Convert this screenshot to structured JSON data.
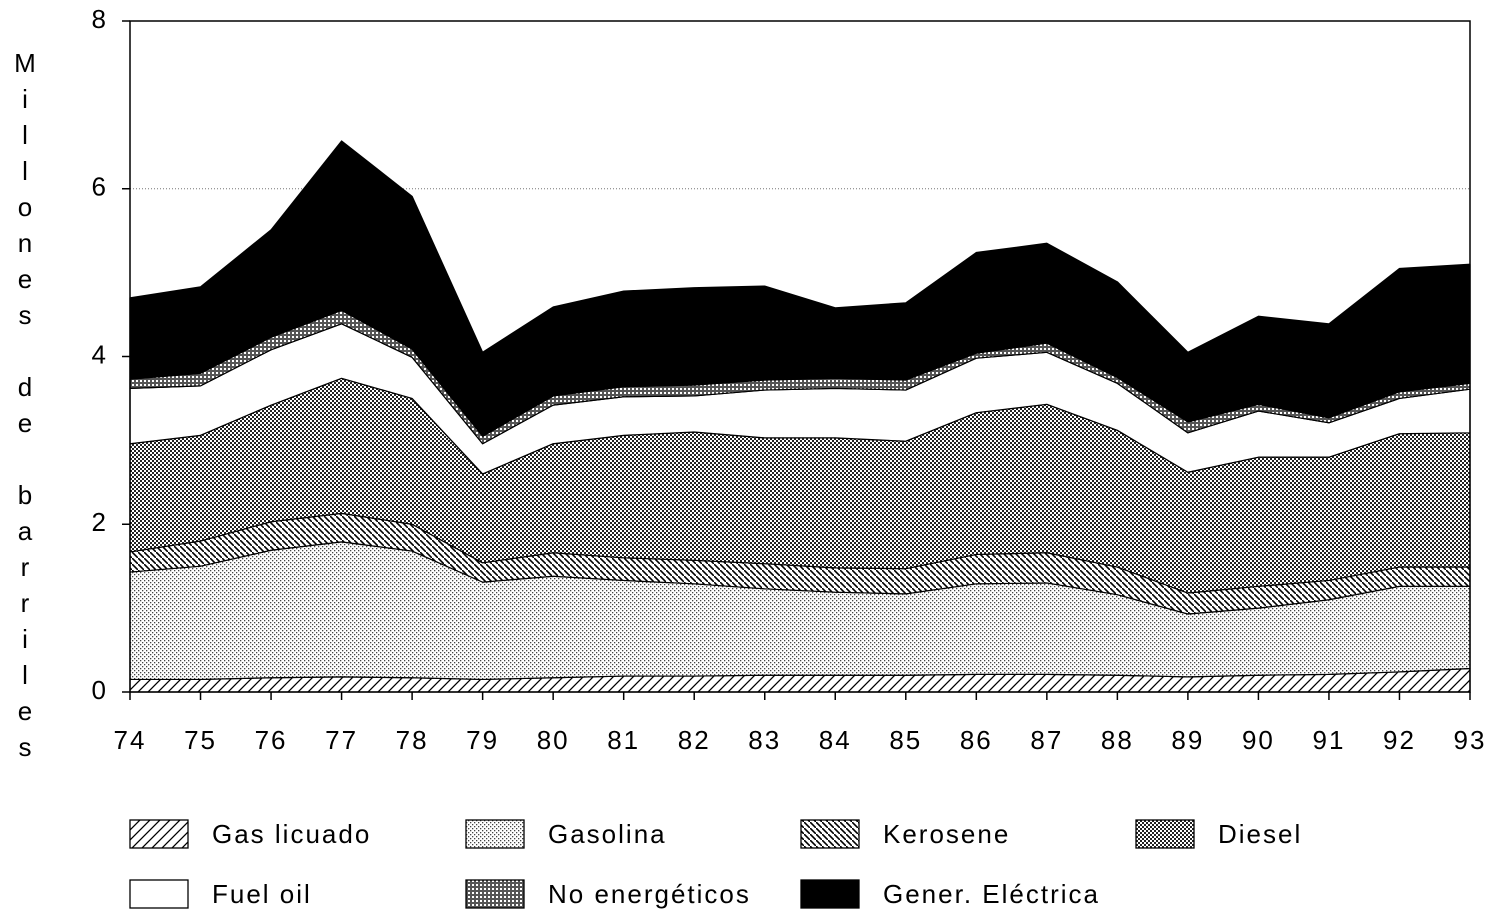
{
  "chart_data": {
    "type": "stacked-area",
    "y_label": "Millones de barriles",
    "categories": [
      "74",
      "75",
      "76",
      "77",
      "78",
      "79",
      "80",
      "81",
      "82",
      "83",
      "84",
      "85",
      "86",
      "87",
      "88",
      "89",
      "90",
      "91",
      "92",
      "93"
    ],
    "ylim": [
      0,
      8
    ],
    "yticks": [
      0,
      2,
      4,
      6,
      8
    ],
    "grid": true,
    "series": [
      {
        "name": "Gas licuado",
        "color": "#000000",
        "pattern": "hatch",
        "values": [
          0.15,
          0.15,
          0.17,
          0.18,
          0.17,
          0.15,
          0.17,
          0.19,
          0.19,
          0.2,
          0.2,
          0.2,
          0.21,
          0.21,
          0.2,
          0.18,
          0.2,
          0.21,
          0.24,
          0.28
        ]
      },
      {
        "name": "Gasolina",
        "color": "#000000",
        "pattern": "dots-light",
        "values": [
          1.28,
          1.35,
          1.52,
          1.61,
          1.51,
          1.16,
          1.21,
          1.14,
          1.1,
          1.03,
          0.99,
          0.97,
          1.08,
          1.09,
          0.96,
          0.75,
          0.8,
          0.89,
          1.02,
          0.98
        ]
      },
      {
        "name": "Kerosene",
        "color": "#000000",
        "pattern": "hatch-dense",
        "values": [
          0.24,
          0.3,
          0.34,
          0.34,
          0.32,
          0.23,
          0.28,
          0.27,
          0.28,
          0.3,
          0.29,
          0.3,
          0.35,
          0.36,
          0.33,
          0.25,
          0.26,
          0.23,
          0.23,
          0.23
        ]
      },
      {
        "name": "Diesel",
        "color": "#000000",
        "pattern": "dots-dense",
        "values": [
          1.29,
          1.26,
          1.39,
          1.61,
          1.5,
          1.06,
          1.3,
          1.46,
          1.53,
          1.5,
          1.55,
          1.52,
          1.69,
          1.77,
          1.63,
          1.44,
          1.54,
          1.47,
          1.59,
          1.6
        ]
      },
      {
        "name": "Fuel oil",
        "color": "#ffffff",
        "pattern": "solid",
        "values": [
          0.66,
          0.59,
          0.66,
          0.65,
          0.49,
          0.36,
          0.46,
          0.46,
          0.43,
          0.57,
          0.59,
          0.61,
          0.65,
          0.62,
          0.56,
          0.47,
          0.55,
          0.41,
          0.42,
          0.52
        ]
      },
      {
        "name": "No energéticos",
        "color": "#000000",
        "pattern": "crosshatch",
        "values": [
          0.11,
          0.15,
          0.15,
          0.16,
          0.1,
          0.09,
          0.11,
          0.12,
          0.13,
          0.12,
          0.12,
          0.12,
          0.06,
          0.11,
          0.07,
          0.13,
          0.08,
          0.06,
          0.08,
          0.07
        ]
      },
      {
        "name": "Gener. Eléctrica",
        "color": "#000000",
        "pattern": "solid",
        "values": [
          0.97,
          1.03,
          1.28,
          2.02,
          1.82,
          1.0,
          1.06,
          1.14,
          1.16,
          1.12,
          0.84,
          0.92,
          1.2,
          1.19,
          1.14,
          0.83,
          1.05,
          1.12,
          1.47,
          1.42
        ]
      }
    ]
  }
}
